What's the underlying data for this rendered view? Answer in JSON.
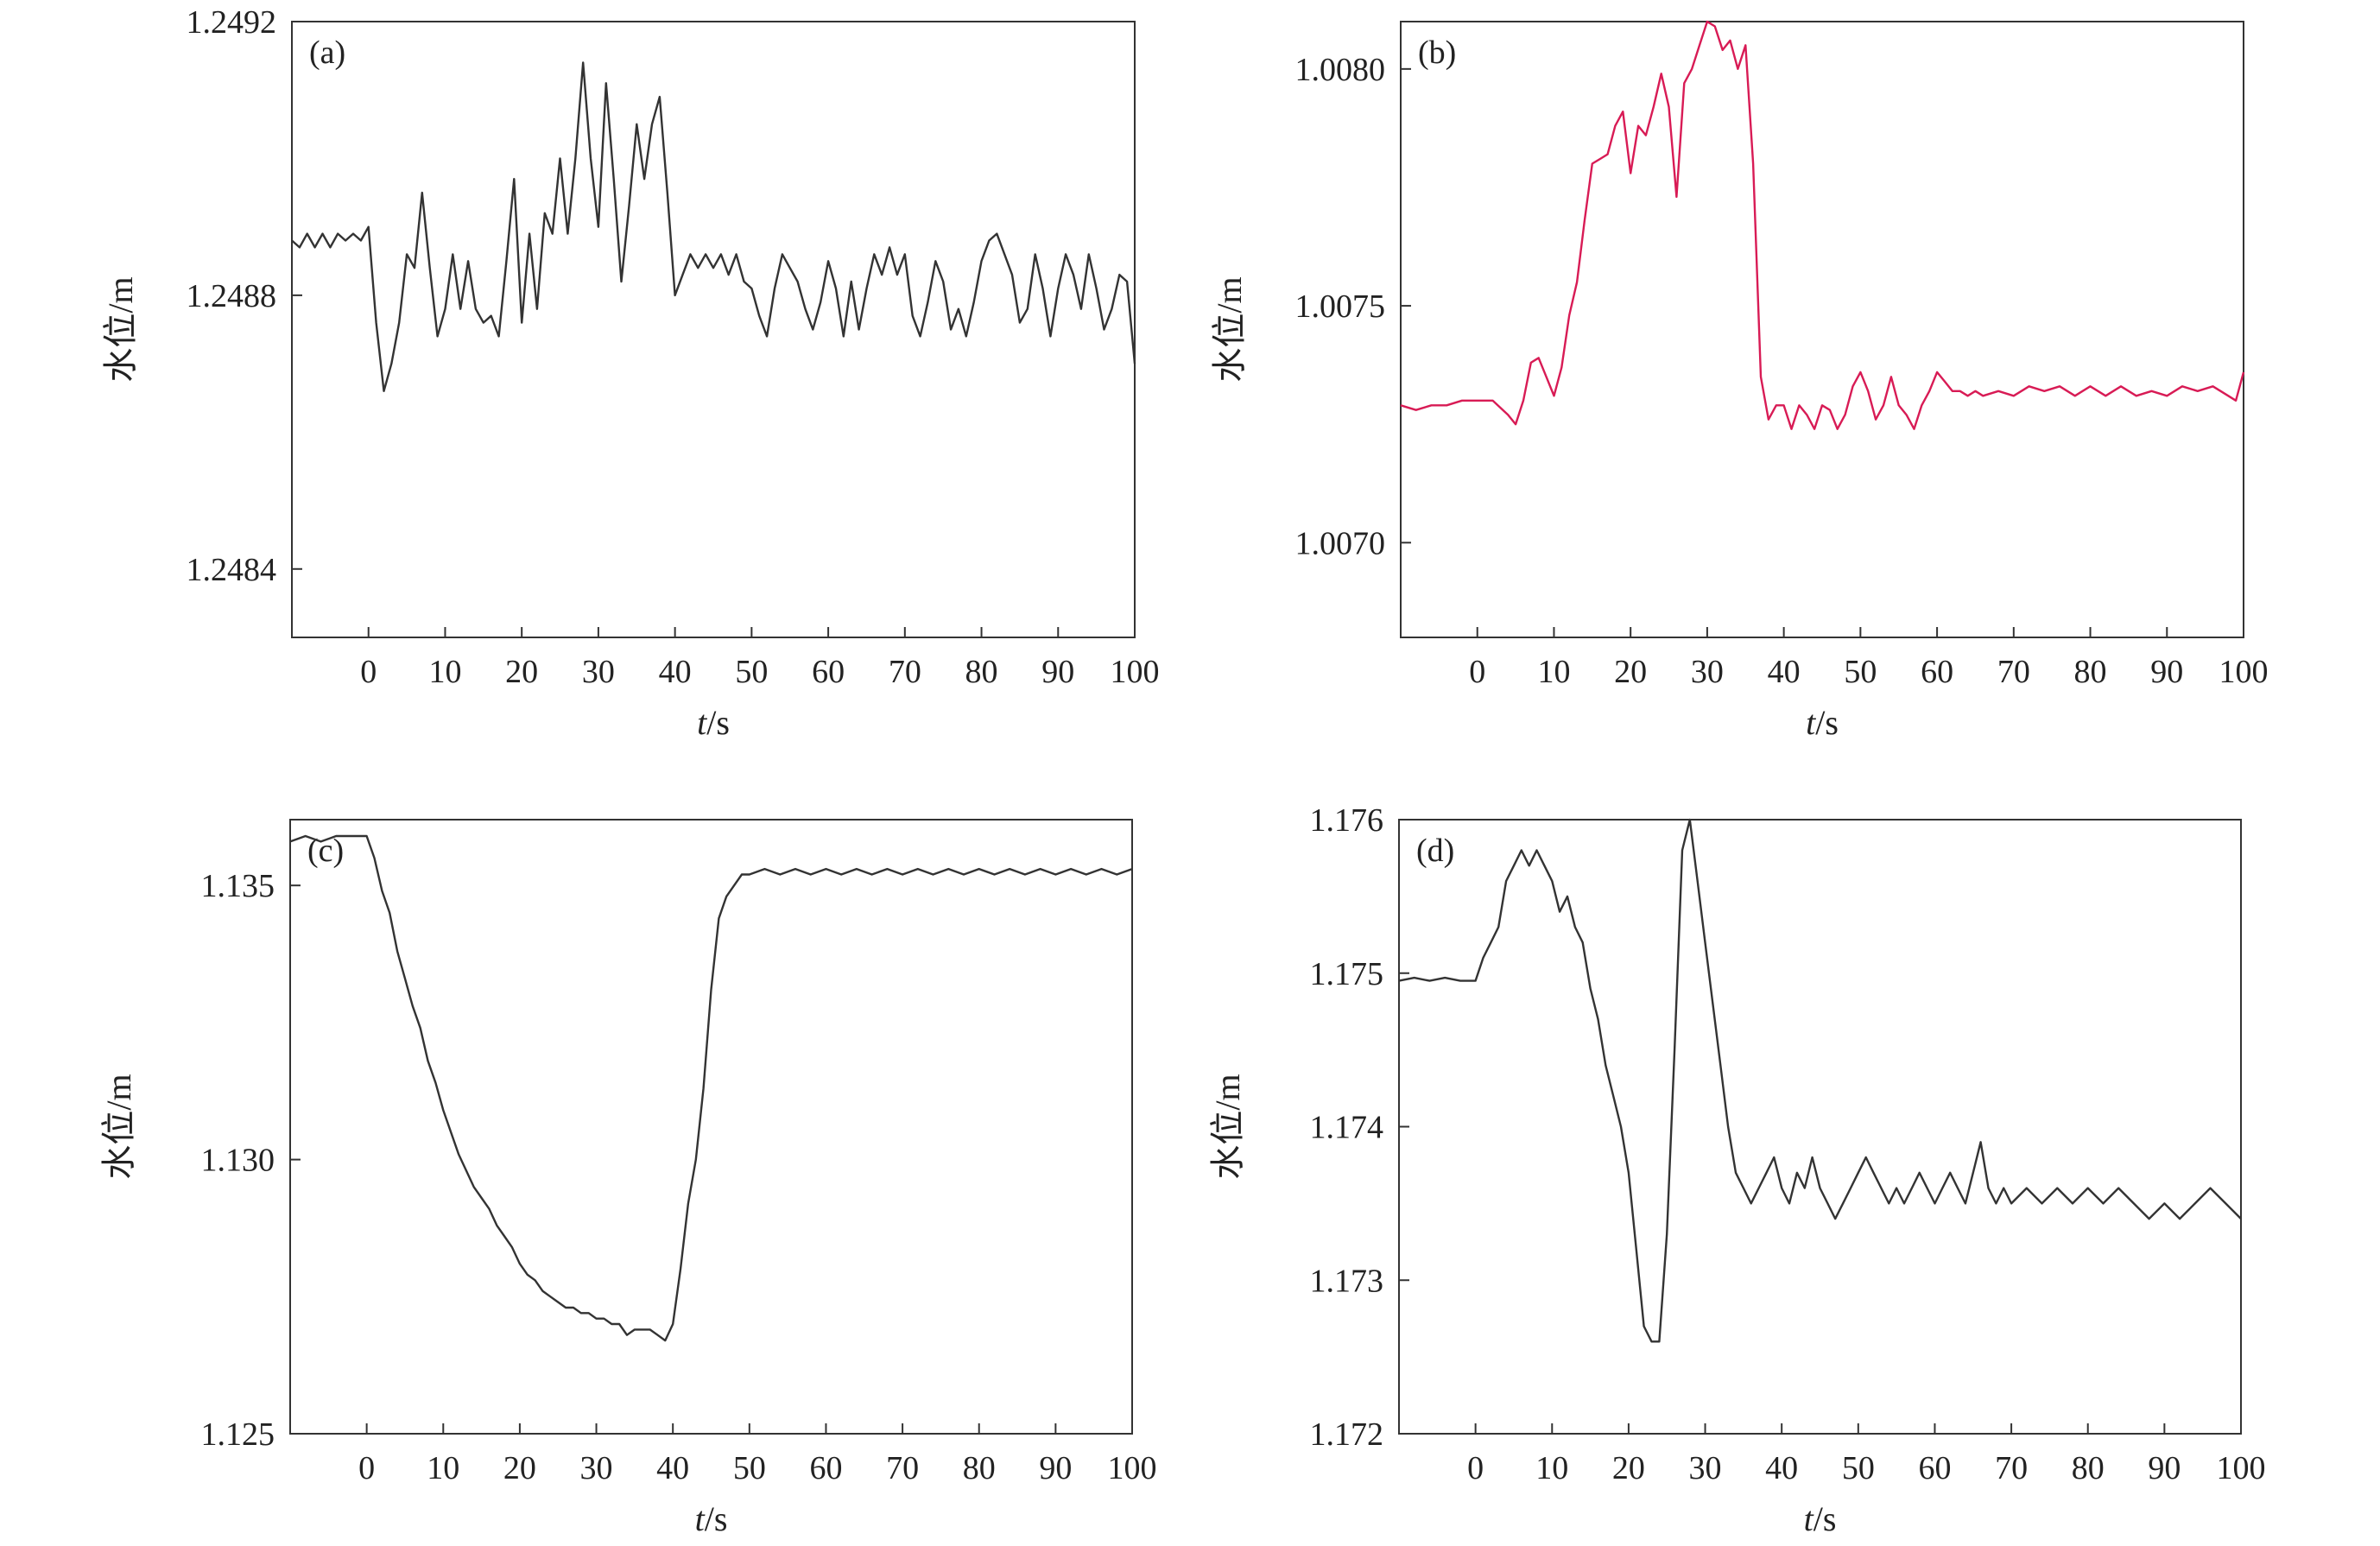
{
  "chart_data": [
    {
      "panel": "(a)",
      "type": "line",
      "xlabel": "t/s",
      "ylabel": "水位/m",
      "xlim": [
        -10,
        100
      ],
      "ylim": [
        1.2483,
        1.2492
      ],
      "xticks": [
        0,
        10,
        20,
        30,
        40,
        50,
        60,
        70,
        80,
        90,
        100
      ],
      "yticks": [
        1.2484,
        1.2488,
        1.2492
      ],
      "ytick_labels": [
        "1.2484",
        "1.2488",
        "1.2492"
      ],
      "line_color": "#333333",
      "grid": false,
      "series": [
        {
          "x": [
            -10,
            -9,
            -8,
            -7,
            -6,
            -5,
            -4,
            -3,
            -2,
            -1,
            0,
            1,
            2,
            3,
            4,
            5,
            6,
            7,
            8,
            9,
            10,
            11,
            12,
            13,
            14,
            15,
            16,
            17,
            18,
            19,
            20,
            21,
            22,
            23,
            24,
            25,
            26,
            27,
            28,
            29,
            30,
            31,
            32,
            33,
            34,
            35,
            36,
            37,
            38,
            39,
            40,
            41,
            42,
            43,
            44,
            45,
            46,
            47,
            48,
            49,
            50,
            51,
            52,
            53,
            54,
            55,
            56,
            57,
            58,
            59,
            60,
            61,
            62,
            63,
            64,
            65,
            66,
            67,
            68,
            69,
            70,
            71,
            72,
            73,
            74,
            75,
            76,
            77,
            78,
            79,
            80,
            81,
            82,
            83,
            84,
            85,
            86,
            87,
            88,
            89,
            90,
            91,
            92,
            93,
            94,
            95,
            96,
            97,
            98,
            99,
            100
          ],
          "y": [
            1.24888,
            1.24887,
            1.24889,
            1.24887,
            1.24889,
            1.24887,
            1.24889,
            1.24888,
            1.24889,
            1.24888,
            1.2489,
            1.24876,
            1.24866,
            1.2487,
            1.24876,
            1.24886,
            1.24884,
            1.24895,
            1.24884,
            1.24874,
            1.24878,
            1.24886,
            1.24878,
            1.24885,
            1.24878,
            1.24876,
            1.24877,
            1.24874,
            1.24885,
            1.24897,
            1.24876,
            1.24889,
            1.24878,
            1.24892,
            1.24889,
            1.249,
            1.24889,
            1.249,
            1.24914,
            1.249,
            1.2489,
            1.24911,
            1.24897,
            1.24882,
            1.24893,
            1.24905,
            1.24897,
            1.24905,
            1.24909,
            1.24895,
            1.2488,
            1.24883,
            1.24886,
            1.24884,
            1.24886,
            1.24884,
            1.24886,
            1.24883,
            1.24886,
            1.24882,
            1.24881,
            1.24877,
            1.24874,
            1.24881,
            1.24886,
            1.24884,
            1.24882,
            1.24878,
            1.24875,
            1.24879,
            1.24885,
            1.24881,
            1.24874,
            1.24882,
            1.24875,
            1.24881,
            1.24886,
            1.24883,
            1.24887,
            1.24883,
            1.24886,
            1.24877,
            1.24874,
            1.24879,
            1.24885,
            1.24882,
            1.24875,
            1.24878,
            1.24874,
            1.24879,
            1.24885,
            1.24888,
            1.24889,
            1.24886,
            1.24883,
            1.24876,
            1.24878,
            1.24886,
            1.24881,
            1.24874,
            1.24881,
            1.24886,
            1.24883,
            1.24878,
            1.24886,
            1.24881,
            1.24875,
            1.24878,
            1.24883,
            1.24882,
            1.2487
          ]
        }
      ]
    },
    {
      "panel": "(b)",
      "type": "line",
      "xlabel": "t/s",
      "ylabel": "水位/m",
      "xlim": [
        -10,
        100
      ],
      "ylim": [
        1.0068,
        1.0081
      ],
      "xticks": [
        0,
        10,
        20,
        30,
        40,
        50,
        60,
        70,
        80,
        90,
        100
      ],
      "yticks": [
        1.007,
        1.0075,
        1.008
      ],
      "ytick_labels": [
        "1.0070",
        "1.0075",
        "1.0080"
      ],
      "line_color": "#d81b55",
      "grid": false,
      "series": [
        {
          "x": [
            -10,
            -8,
            -6,
            -4,
            -2,
            0,
            2,
            4,
            5,
            6,
            7,
            8,
            9,
            10,
            11,
            12,
            13,
            14,
            15,
            16,
            17,
            18,
            19,
            20,
            21,
            22,
            23,
            24,
            25,
            26,
            27,
            28,
            29,
            30,
            31,
            32,
            33,
            34,
            35,
            36,
            37,
            38,
            39,
            40,
            41,
            42,
            43,
            44,
            45,
            46,
            47,
            48,
            49,
            50,
            51,
            52,
            53,
            54,
            55,
            56,
            57,
            58,
            59,
            60,
            61,
            62,
            63,
            64,
            65,
            66,
            68,
            70,
            72,
            74,
            76,
            78,
            80,
            82,
            84,
            86,
            88,
            90,
            92,
            94,
            96,
            98,
            99,
            100
          ],
          "y": [
            1.00729,
            1.00728,
            1.00729,
            1.00729,
            1.0073,
            1.0073,
            1.0073,
            1.00727,
            1.00725,
            1.0073,
            1.00738,
            1.00739,
            1.00735,
            1.00731,
            1.00737,
            1.00748,
            1.00755,
            1.00768,
            1.0078,
            1.00781,
            1.00782,
            1.00788,
            1.00791,
            1.00778,
            1.00788,
            1.00786,
            1.00792,
            1.00799,
            1.00792,
            1.00773,
            1.00797,
            1.008,
            1.00805,
            1.0081,
            1.00809,
            1.00804,
            1.00806,
            1.008,
            1.00805,
            1.0078,
            1.00735,
            1.00726,
            1.00729,
            1.00729,
            1.00724,
            1.00729,
            1.00727,
            1.00724,
            1.00729,
            1.00728,
            1.00724,
            1.00727,
            1.00733,
            1.00736,
            1.00732,
            1.00726,
            1.00729,
            1.00735,
            1.00729,
            1.00727,
            1.00724,
            1.00729,
            1.00732,
            1.00736,
            1.00734,
            1.00732,
            1.00732,
            1.00731,
            1.00732,
            1.00731,
            1.00732,
            1.00731,
            1.00733,
            1.00732,
            1.00733,
            1.00731,
            1.00733,
            1.00731,
            1.00733,
            1.00731,
            1.00732,
            1.00731,
            1.00733,
            1.00732,
            1.00733,
            1.00731,
            1.0073,
            1.00736
          ]
        }
      ]
    },
    {
      "panel": "(c)",
      "type": "line",
      "xlabel": "t/s",
      "ylabel": "水位/m",
      "xlim": [
        -10,
        100
      ],
      "ylim": [
        1.125,
        1.1362
      ],
      "xticks": [
        0,
        10,
        20,
        30,
        40,
        50,
        60,
        70,
        80,
        90,
        100
      ],
      "yticks": [
        1.125,
        1.13,
        1.135
      ],
      "ytick_labels": [
        "1.125",
        "1.130",
        "1.135"
      ],
      "line_color": "#333333",
      "grid": false,
      "series": [
        {
          "x": [
            -10,
            -8,
            -6,
            -4,
            -2,
            0,
            1,
            2,
            3,
            4,
            5,
            6,
            7,
            8,
            9,
            10,
            12,
            14,
            15,
            16,
            17,
            18,
            19,
            20,
            21,
            22,
            23,
            24,
            25,
            26,
            27,
            28,
            29,
            30,
            31,
            32,
            33,
            34,
            35,
            36,
            37,
            38,
            39,
            40,
            41,
            42,
            43,
            44,
            45,
            46,
            47,
            48,
            49,
            50,
            52,
            54,
            56,
            58,
            60,
            62,
            64,
            66,
            68,
            70,
            72,
            74,
            76,
            78,
            80,
            82,
            84,
            86,
            88,
            90,
            92,
            94,
            96,
            98,
            100
          ],
          "y": [
            1.1358,
            1.1359,
            1.1358,
            1.1359,
            1.1359,
            1.1359,
            1.1355,
            1.1349,
            1.1345,
            1.1338,
            1.1333,
            1.1328,
            1.1324,
            1.1318,
            1.1314,
            1.1309,
            1.1301,
            1.1295,
            1.1293,
            1.1291,
            1.1288,
            1.1286,
            1.1284,
            1.1281,
            1.1279,
            1.1278,
            1.1276,
            1.1275,
            1.1274,
            1.1273,
            1.1273,
            1.1272,
            1.1272,
            1.1271,
            1.1271,
            1.127,
            1.127,
            1.1268,
            1.1269,
            1.1269,
            1.1269,
            1.1268,
            1.1267,
            1.127,
            1.128,
            1.1292,
            1.13,
            1.1313,
            1.1331,
            1.1344,
            1.1348,
            1.135,
            1.1352,
            1.1352,
            1.1353,
            1.1352,
            1.1353,
            1.1352,
            1.1353,
            1.1352,
            1.1353,
            1.1352,
            1.1353,
            1.1352,
            1.1353,
            1.1352,
            1.1353,
            1.1352,
            1.1353,
            1.1352,
            1.1353,
            1.1352,
            1.1353,
            1.1352,
            1.1353,
            1.1352,
            1.1353,
            1.1352,
            1.1353
          ]
        }
      ]
    },
    {
      "panel": "(d)",
      "type": "line",
      "xlabel": "t/s",
      "ylabel": "水位/m",
      "xlim": [
        -10,
        100
      ],
      "ylim": [
        1.172,
        1.176
      ],
      "xticks": [
        0,
        10,
        20,
        30,
        40,
        50,
        60,
        70,
        80,
        90,
        100
      ],
      "yticks": [
        1.172,
        1.173,
        1.174,
        1.175,
        1.176
      ],
      "ytick_labels": [
        "1.172",
        "1.173",
        "1.174",
        "1.175",
        "1.176"
      ],
      "line_color": "#333333",
      "grid": false,
      "series": [
        {
          "x": [
            -10,
            -8,
            -6,
            -4,
            -2,
            0,
            1,
            2,
            3,
            4,
            5,
            6,
            7,
            8,
            9,
            10,
            11,
            12,
            13,
            14,
            15,
            16,
            17,
            18,
            19,
            20,
            21,
            22,
            23,
            24,
            25,
            26,
            27,
            28,
            29,
            30,
            31,
            32,
            33,
            34,
            35,
            36,
            37,
            38,
            39,
            40,
            41,
            42,
            43,
            44,
            45,
            46,
            47,
            48,
            49,
            50,
            51,
            52,
            53,
            54,
            55,
            56,
            57,
            58,
            59,
            60,
            61,
            62,
            63,
            64,
            65,
            66,
            67,
            68,
            69,
            70,
            72,
            74,
            76,
            78,
            80,
            82,
            84,
            86,
            88,
            90,
            92,
            94,
            96,
            98,
            100
          ],
          "y": [
            1.17495,
            1.17497,
            1.17495,
            1.17497,
            1.17495,
            1.17495,
            1.1751,
            1.1752,
            1.1753,
            1.1756,
            1.1757,
            1.1758,
            1.1757,
            1.1758,
            1.1757,
            1.1756,
            1.1754,
            1.1755,
            1.1753,
            1.1752,
            1.1749,
            1.1747,
            1.1744,
            1.1742,
            1.174,
            1.1737,
            1.1732,
            1.1727,
            1.1726,
            1.1726,
            1.1733,
            1.1745,
            1.1758,
            1.176,
            1.1756,
            1.1752,
            1.1748,
            1.1744,
            1.174,
            1.1737,
            1.1736,
            1.1735,
            1.1736,
            1.1737,
            1.1738,
            1.1736,
            1.1735,
            1.1737,
            1.1736,
            1.1738,
            1.1736,
            1.1735,
            1.1734,
            1.1735,
            1.1736,
            1.1737,
            1.1738,
            1.1737,
            1.1736,
            1.1735,
            1.1736,
            1.1735,
            1.1736,
            1.1737,
            1.1736,
            1.1735,
            1.1736,
            1.1737,
            1.1736,
            1.1735,
            1.1737,
            1.1739,
            1.1736,
            1.1735,
            1.1736,
            1.1735,
            1.1736,
            1.1735,
            1.1736,
            1.1735,
            1.1736,
            1.1735,
            1.1736,
            1.1735,
            1.1734,
            1.1735,
            1.1734,
            1.1735,
            1.1736,
            1.1735,
            1.1734
          ]
        }
      ]
    }
  ]
}
